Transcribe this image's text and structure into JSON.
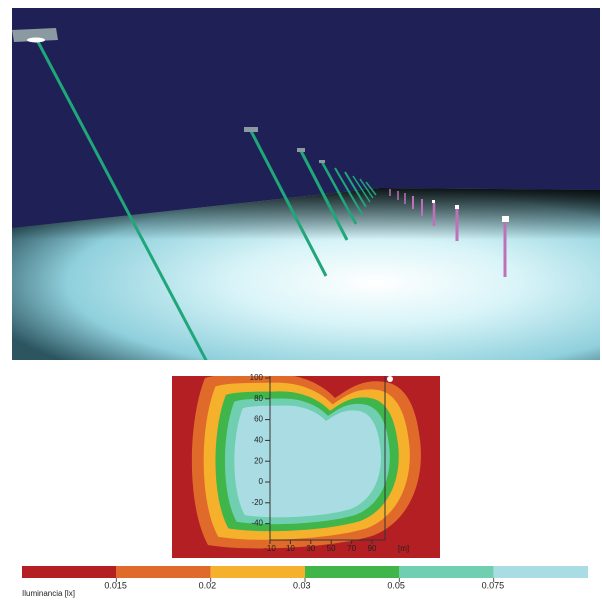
{
  "plot": {
    "yticks": [
      100,
      80,
      60,
      40,
      20,
      0,
      -20,
      -40
    ],
    "xticks": [
      -10,
      10,
      30,
      50,
      70,
      90
    ],
    "x_unit": "[m]"
  },
  "legend": {
    "title": "Iluminancia [lx]",
    "colors": [
      "#b41f24",
      "#e06a2a",
      "#f5b02c",
      "#3fb54a",
      "#6fcfb0",
      "#a9dde3"
    ],
    "labels": [
      0.015,
      0.02,
      0.03,
      0.05,
      0.075
    ]
  }
}
